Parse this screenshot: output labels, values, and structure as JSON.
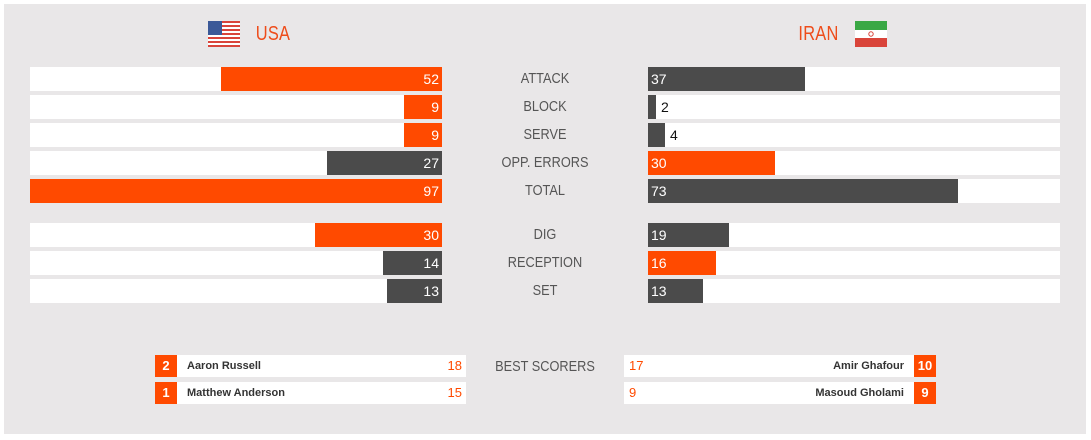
{
  "teams": {
    "home": {
      "name": "USA",
      "flag_icon": "usa-flag-icon"
    },
    "away": {
      "name": "IRAN",
      "flag_icon": "iran-flag-icon"
    }
  },
  "colors": {
    "accent": "#ff4a00",
    "dark": "#4b4b4b",
    "panel": "#e9e7e8",
    "track": "#ffffff"
  },
  "scale_max": 97,
  "stats": [
    {
      "label": "ATTACK",
      "home": 52,
      "away": 37,
      "leader": "home"
    },
    {
      "label": "BLOCK",
      "home": 9,
      "away": 2,
      "leader": "home"
    },
    {
      "label": "SERVE",
      "home": 9,
      "away": 4,
      "leader": "home"
    },
    {
      "label": "OPP. ERRORS",
      "home": 27,
      "away": 30,
      "leader": "away"
    },
    {
      "label": "TOTAL",
      "home": 97,
      "away": 73,
      "leader": "home"
    }
  ],
  "stats2": [
    {
      "label": "DIG",
      "home": 30,
      "away": 19,
      "leader": "home"
    },
    {
      "label": "RECEPTION",
      "home": 14,
      "away": 16,
      "leader": "away"
    },
    {
      "label": "SET",
      "home": 13,
      "away": 13,
      "leader": "none"
    }
  ],
  "best_scorers": {
    "label": "BEST SCORERS",
    "home": [
      {
        "number": "2",
        "name": "Aaron Russell",
        "points": "18"
      },
      {
        "number": "1",
        "name": "Matthew Anderson",
        "points": "15"
      }
    ],
    "away": [
      {
        "number": "10",
        "name": "Amir Ghafour",
        "points": "17"
      },
      {
        "number": "9",
        "name": "Masoud Gholami",
        "points": "9"
      }
    ]
  }
}
